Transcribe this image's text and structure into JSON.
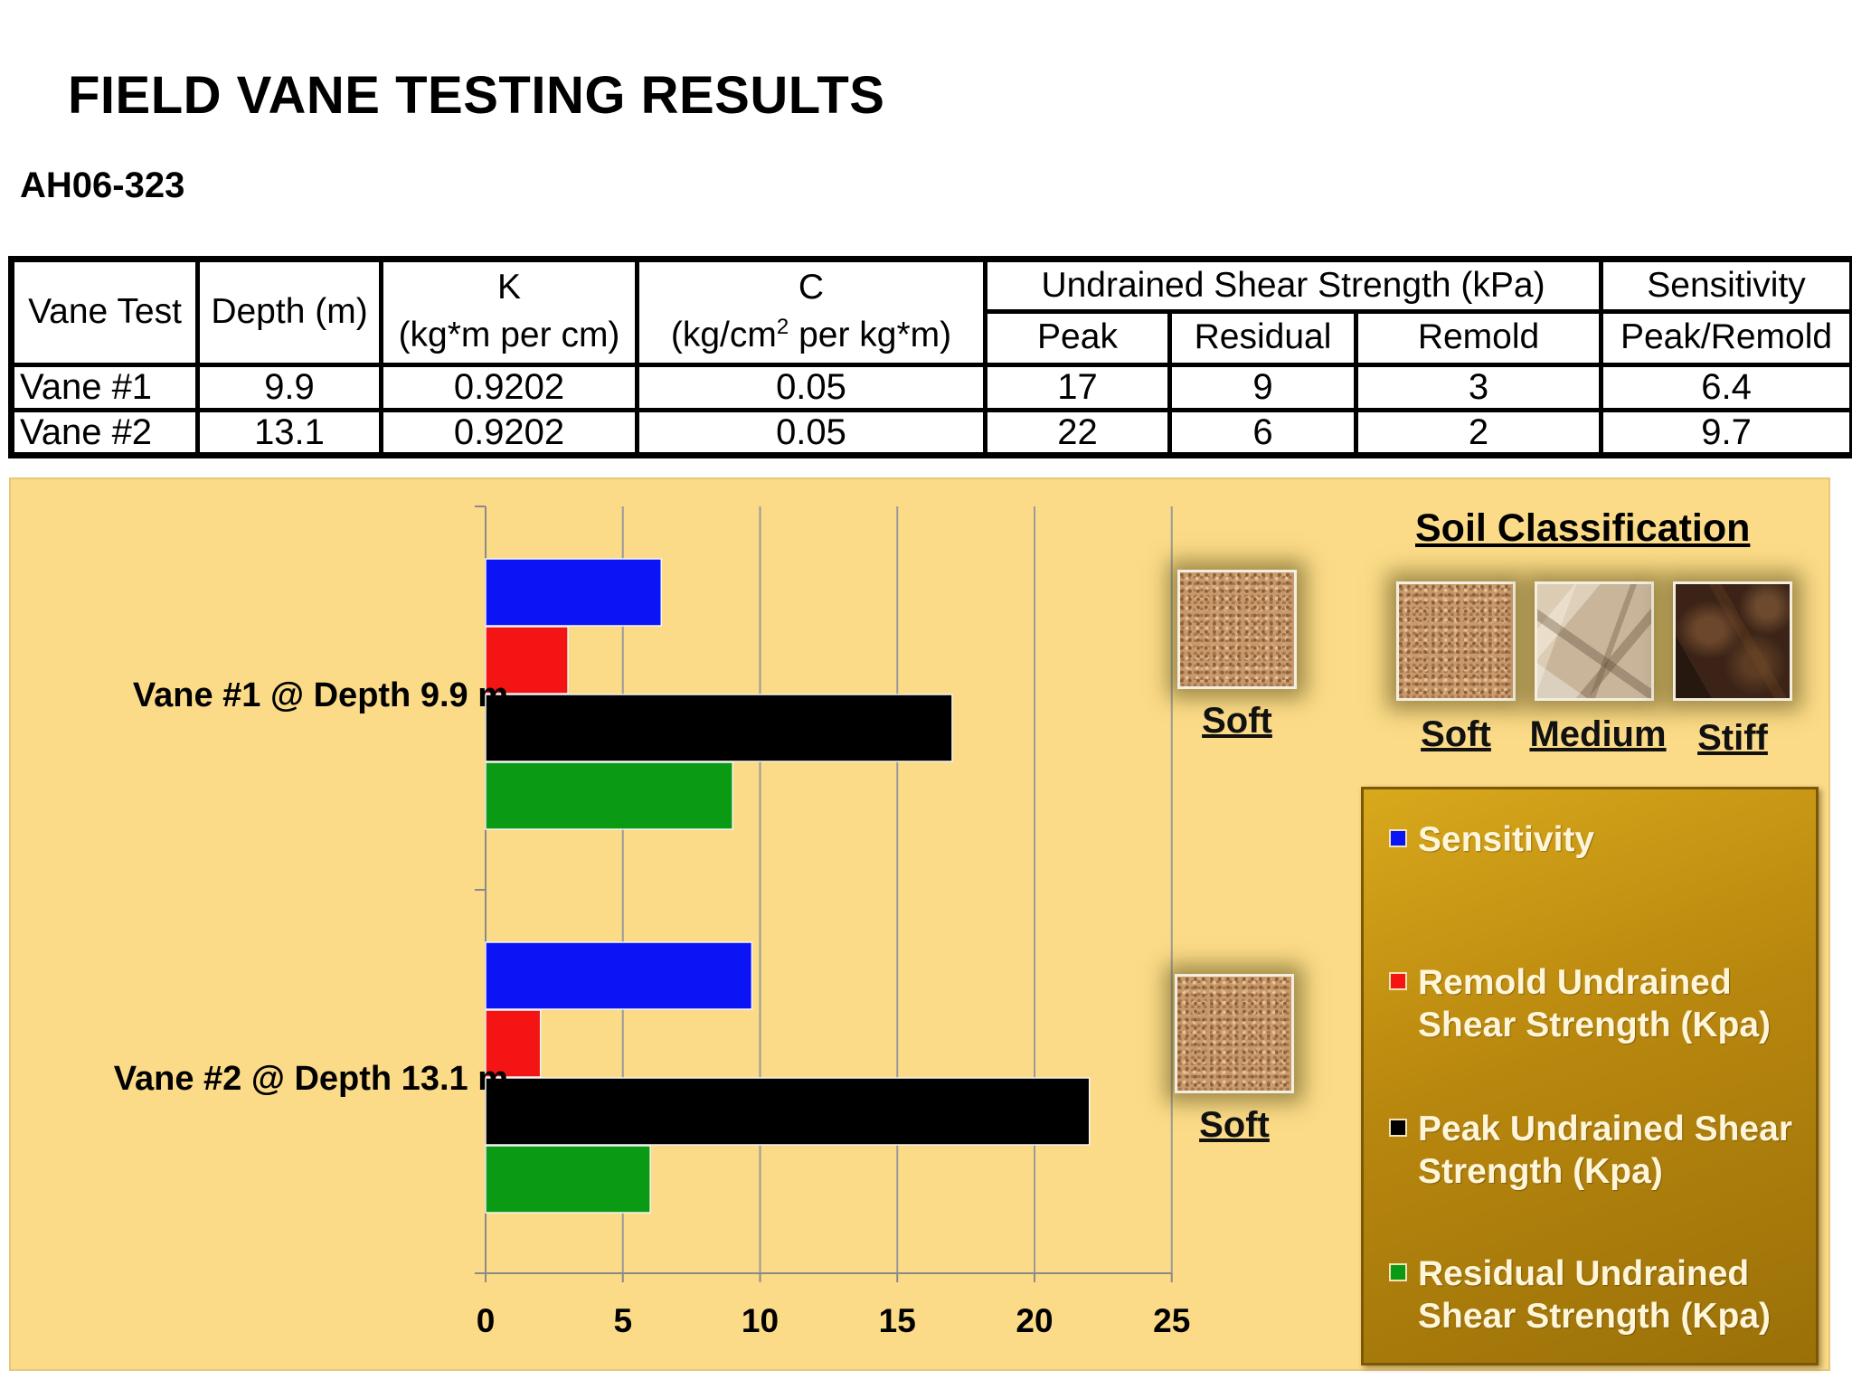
{
  "page": {
    "title": "FIELD VANE TESTING RESULTS",
    "subtitle": "AH06-323"
  },
  "table": {
    "headers": {
      "vane_test": "Vane Test",
      "depth": "Depth (m)",
      "k_top": "K",
      "k_unit": "(kg*m per cm)",
      "c_top": "C",
      "c_unit_a": "(kg/cm",
      "c_unit_sup": "2",
      "c_unit_b": " per kg*m)",
      "uss": "Undrained Shear Strength (kPa)",
      "peak": "Peak",
      "residual": "Residual",
      "remold": "Remold",
      "sens_top": "Sensitivity",
      "sens_sub": "Peak/Remold"
    },
    "rows": [
      {
        "vane": "Vane #1",
        "depth": "9.9",
        "k": "0.9202",
        "c": "0.05",
        "peak": "17",
        "residual": "9",
        "remold": "3",
        "sensitivity": "6.4"
      },
      {
        "vane": "Vane #2",
        "depth": "13.1",
        "k": "0.9202",
        "c": "0.05",
        "peak": "22",
        "residual": "6",
        "remold": "2",
        "sensitivity": "9.7"
      }
    ]
  },
  "chart_data": {
    "type": "bar",
    "orientation": "horizontal",
    "categories": [
      "Vane #1 @ Depth 9.9 m",
      "Vane #2 @ Depth 13.1 m"
    ],
    "series": [
      {
        "name": "Sensitivity",
        "color": "#0a14f5",
        "values": [
          6.4,
          9.7
        ]
      },
      {
        "name": "Remold Undrained Shear Strength (Kpa)",
        "color": "#f51414",
        "values": [
          3,
          2
        ]
      },
      {
        "name": "Peak Undrained Shear Strength (Kpa)",
        "color": "#000000",
        "values": [
          17,
          22
        ]
      },
      {
        "name": "Residual Undrained Shear Strength (Kpa)",
        "color": "#0a9a14",
        "values": [
          9,
          6
        ]
      }
    ],
    "xlim": [
      0,
      25
    ],
    "xticks": [
      "0",
      "5",
      "10",
      "15",
      "20",
      "25"
    ],
    "grid": "vertical",
    "legend_position": "right"
  },
  "soil": {
    "classification_title": "Soil Classification",
    "vane1_label": "Soft",
    "vane2_label": "Soft",
    "types": [
      {
        "label": "Soft",
        "texture": "sand"
      },
      {
        "label": "Medium",
        "texture": "medium"
      },
      {
        "label": "Stiff",
        "texture": "stiff"
      }
    ]
  }
}
